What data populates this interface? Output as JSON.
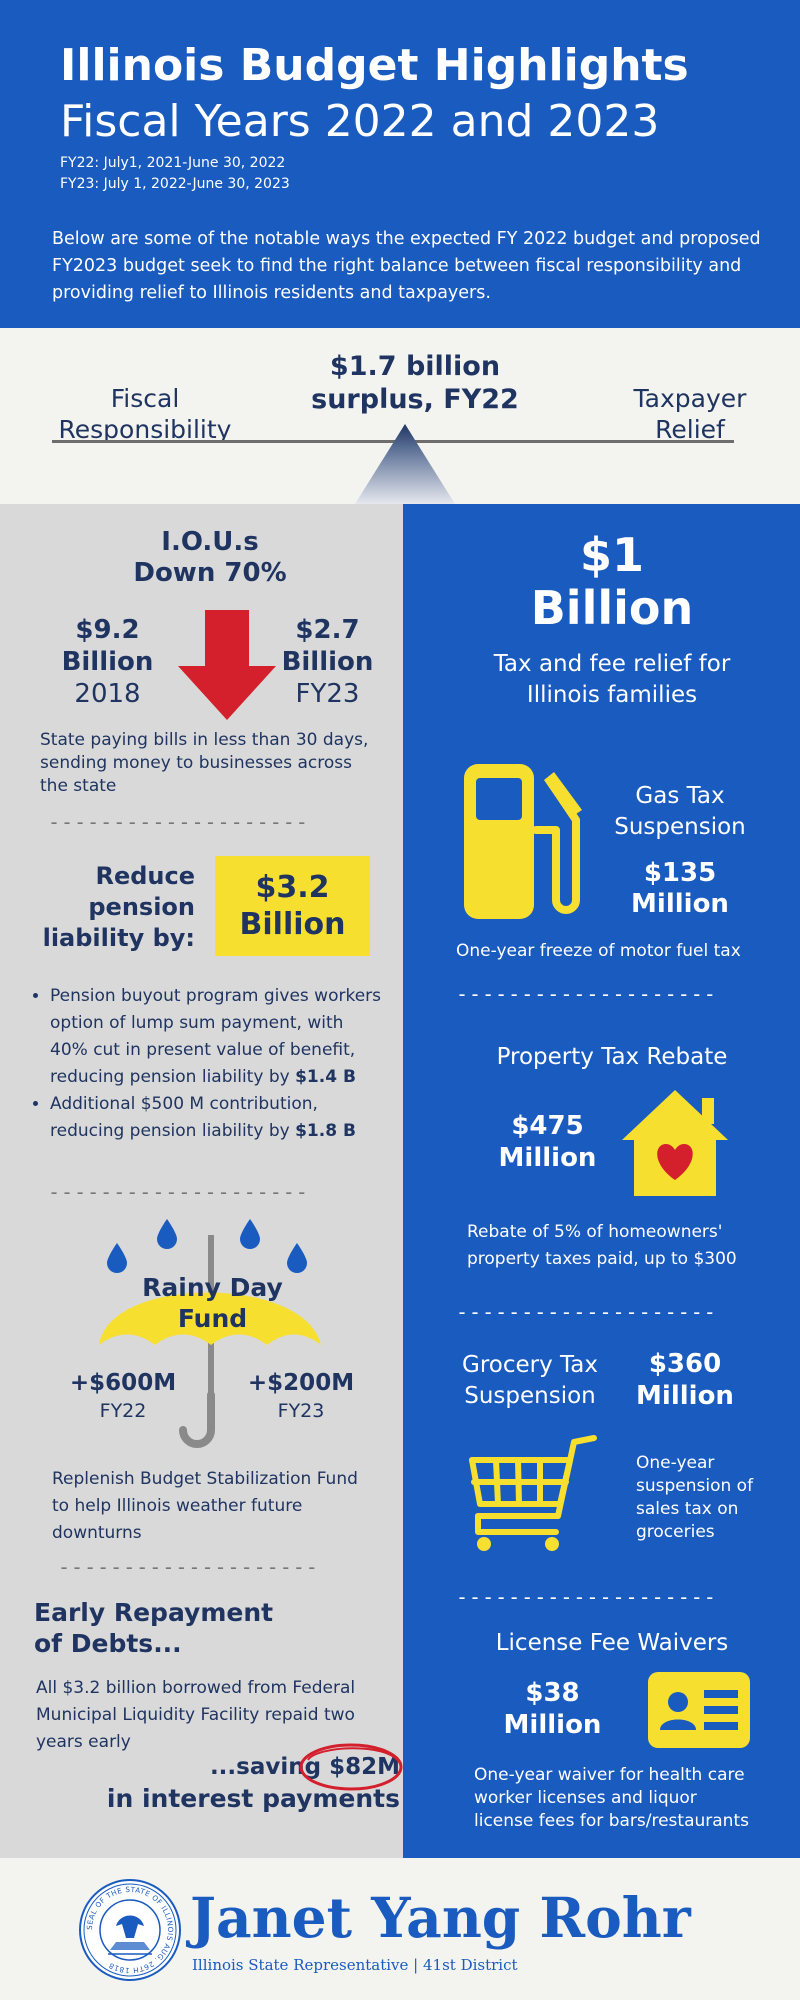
{
  "header": {
    "title_line1": "Illinois Budget Highlights",
    "title_line2": "Fiscal Years 2022 and 2023",
    "fy22_dates": "FY22: July1, 2021-June 30, 2022",
    "fy23_dates": "FY23: July 1, 2022-June 30, 2023",
    "intro_line1": "Below are some of the notable ways the expected FY 2022 budget and proposed",
    "intro_line2": "FY2023 budget seek to find the right balance between fiscal responsibility and",
    "intro_line3": "providing relief to Illinois residents and taxpayers."
  },
  "balance": {
    "left_line1": "Fiscal",
    "left_line2": "Responsibility",
    "center_line1": "$1.7 billion",
    "center_line2": "surplus, FY22",
    "right_line1": "Taxpayer",
    "right_line2": "Relief"
  },
  "ious": {
    "title_line1": "I.O.U.s",
    "title_line2": "Down 70%",
    "left_value": "$9.2",
    "left_unit": "Billion",
    "left_year": "2018",
    "right_value": "$2.7",
    "right_unit": "Billion",
    "right_year": "FY23",
    "desc_line1": "State paying bills in less than 30 days,",
    "desc_line2": "sending money to businesses across",
    "desc_line3": "the state"
  },
  "dashes": "--------------------",
  "pension": {
    "label_line1": "Reduce",
    "label_line2": "pension",
    "label_line3": "liability by:",
    "box_value": "$3.2",
    "box_unit": "Billion",
    "bullet1_line1": "Pension buyout program gives workers",
    "bullet1_line2": "option of lump sum payment, with",
    "bullet1_line3": "40% cut in present value of benefit,",
    "bullet1_line4_pre": "reducing pension liability by ",
    "bullet1_line4_bold": "$1.4 B",
    "bullet2_line1": "Additional $500 M contribution,",
    "bullet2_line2_pre": "reducing pension liability by ",
    "bullet2_line2_bold": "$1.8 B"
  },
  "rainy": {
    "title_line1": "Rainy Day",
    "title_line2": "Fund",
    "left_value": "+$600M",
    "left_year": "FY22",
    "right_value": "+$200M",
    "right_year": "FY23",
    "desc_line1": "Replenish Budget Stabilization Fund",
    "desc_line2": "to help Illinois weather future",
    "desc_line3": "downturns"
  },
  "debts": {
    "title_line1": "Early Repayment",
    "title_line2": "of Debts...",
    "desc_line1": "All $3.2 billion borrowed from Federal",
    "desc_line2": "Municipal Liquidity Facility repaid two",
    "desc_line3": "years early",
    "saving_pre": "...saving ",
    "saving_amount": "$82M",
    "saving_line2": "in interest payments"
  },
  "relief": {
    "value": "$1",
    "unit": "Billion",
    "desc_line1": "Tax and fee relief for",
    "desc_line2": "Illinois families"
  },
  "gas": {
    "title_line1": "Gas Tax",
    "title_line2": "Suspension",
    "value": "$135",
    "unit": "Million",
    "desc": "One-year freeze of motor fuel tax"
  },
  "property": {
    "title": "Property Tax Rebate",
    "value": "$475",
    "unit": "Million",
    "desc_line1": "Rebate of 5% of homeowners'",
    "desc_line2": "property taxes paid, up to $300"
  },
  "grocery": {
    "title_line1": "Grocery Tax",
    "title_line2": "Suspension",
    "value": "$360",
    "unit": "Million",
    "desc_line1": "One-year",
    "desc_line2": "suspension of",
    "desc_line3": "sales tax on",
    "desc_line4": "groceries"
  },
  "license": {
    "title": "License Fee Waivers",
    "value": "$38",
    "unit": "Million",
    "desc_line1": "One-year waiver for health care",
    "desc_line2": "worker licenses and liquor",
    "desc_line3": "license fees for bars/restaurants"
  },
  "footer": {
    "name": "Janet Yang Rohr",
    "subtitle": "Illinois State Representative | 41st District",
    "seal_text": "SEAL OF THE STATE OF ILLINOIS AUG. 26TH 1818"
  },
  "colors": {
    "blue": "#1a5bbf",
    "navy": "#1f3461",
    "yellow": "#f7df30",
    "red": "#d41f2d",
    "gray": "#d9d9d9"
  }
}
